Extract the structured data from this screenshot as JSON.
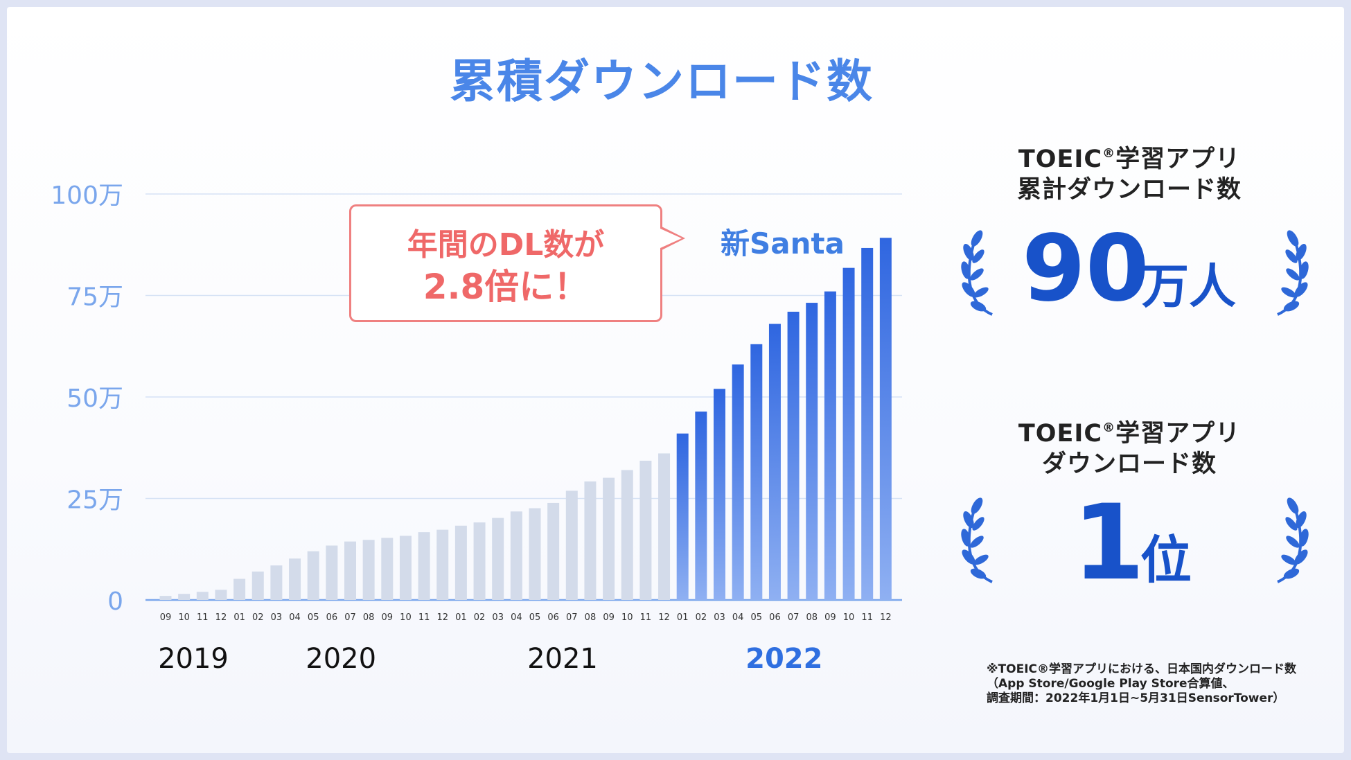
{
  "title": "累積ダウンロード数",
  "chart_data": {
    "type": "bar",
    "title": "累積ダウンロード数",
    "y_unit": "万",
    "ylim": [
      0,
      100
    ],
    "y_ticks": [
      {
        "value": 0,
        "label": "0"
      },
      {
        "value": 25,
        "label": "25万"
      },
      {
        "value": 50,
        "label": "50万"
      },
      {
        "value": 75,
        "label": "75万"
      },
      {
        "value": 100,
        "label": "100万"
      }
    ],
    "categories": [
      "09",
      "10",
      "11",
      "12",
      "01",
      "02",
      "03",
      "04",
      "05",
      "06",
      "07",
      "08",
      "09",
      "10",
      "11",
      "12",
      "01",
      "02",
      "03",
      "04",
      "05",
      "06",
      "07",
      "08",
      "09",
      "10",
      "11",
      "12",
      "01",
      "02",
      "03",
      "04",
      "05",
      "06",
      "07",
      "08",
      "09",
      "10",
      "11",
      "12"
    ],
    "values": [
      1.0,
      1.5,
      2.0,
      2.5,
      5.2,
      7.0,
      8.5,
      10.2,
      12.0,
      13.4,
      14.4,
      14.8,
      15.3,
      15.8,
      16.7,
      17.3,
      18.3,
      19.1,
      20.2,
      21.8,
      22.6,
      23.9,
      26.9,
      29.2,
      30.1,
      32.0,
      34.3,
      36.1,
      41.0,
      46.4,
      52.0,
      58.0,
      63.0,
      68.0,
      71.0,
      73.2,
      76.0,
      81.8,
      86.7,
      89.2
    ],
    "highlight_from_index": 28,
    "series_names": [
      "",
      "新Santa"
    ],
    "year_labels": [
      {
        "label": "2019",
        "index": 1.5,
        "highlight": false
      },
      {
        "label": "2020",
        "index": 9.5,
        "highlight": false
      },
      {
        "label": "2021",
        "index": 21.5,
        "highlight": false
      },
      {
        "label": "2022",
        "index": 33.5,
        "highlight": true
      }
    ],
    "annotation": {
      "line1": "年間のDL数が",
      "line2": "2.8倍に！"
    },
    "highlight_label": "新Santa"
  },
  "right_panel": {
    "block1": {
      "line1_prefix": "TOEIC",
      "reg_mark": "®",
      "line1_suffix": "学習アプリ",
      "line2": "累計ダウンロード数",
      "value": "90",
      "unit": "万人"
    },
    "block2": {
      "line1_prefix": "TOEIC",
      "reg_mark": "®",
      "line1_suffix": "学習アプリ",
      "line2": "ダウンロード数",
      "value": "1",
      "unit": "位"
    }
  },
  "footnote": {
    "line1": "※TOEIC®学習アプリにおける、日本国内ダウンロード数",
    "line2": "（App Store/Google Play Store合算値、",
    "line3": "調査期間：2022年1月1日~5月31日SensorTower）"
  },
  "colors": {
    "title": "#4a86e8",
    "bar_past": "#d3dbea",
    "bar_new_top": "#2f66e0",
    "bar_new_bottom": "#8fb0f2",
    "axis_label": "#7aa6ec",
    "callout": "#ef6868",
    "highlight_year": "#2f6fe0",
    "big_number": "#1852c9",
    "wreath": "#2e68d8"
  }
}
